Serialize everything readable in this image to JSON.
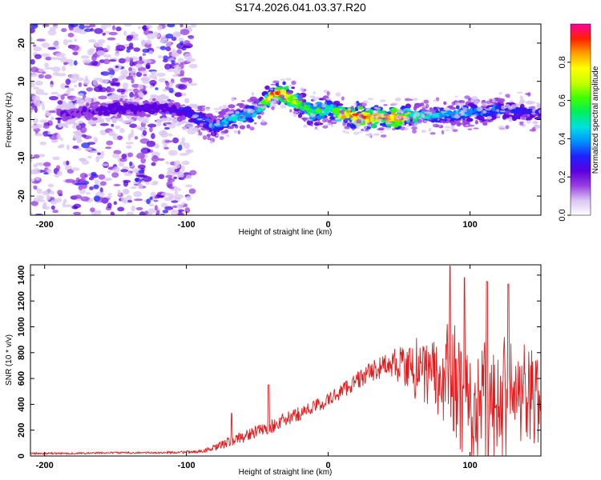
{
  "title": "S174.2026.041.03.37.R20",
  "chart_data": [
    {
      "type": "heatmap",
      "name": "spectrogram",
      "xlabel": "Height of straight line (km)",
      "ylabel": "Frequency (Hz)",
      "xlim": [
        -210,
        150
      ],
      "ylim": [
        -25,
        25
      ],
      "xticks": [
        -200,
        -100,
        0,
        100
      ],
      "yticks": [
        -20,
        -10,
        0,
        10,
        20
      ],
      "colorbar": {
        "label": "Normalized spectral amplitude",
        "range": [
          0,
          1
        ],
        "ticks": [
          0.0,
          0.2,
          0.4,
          0.6,
          0.8
        ],
        "colors": [
          "#ffffff",
          "#d9c6f2",
          "#9a3fe0",
          "#5b00e0",
          "#2020ff",
          "#0090ff",
          "#00e0e0",
          "#00ee60",
          "#40ff00",
          "#c8ff00",
          "#ffff00",
          "#ffa000",
          "#ff2000",
          "#ff00a0"
        ]
      },
      "ridge": {
        "x": [
          -190,
          -170,
          -150,
          -130,
          -115,
          -100,
          -90,
          -85,
          -80,
          -75,
          -70,
          -65,
          -60,
          -55,
          -50,
          -45,
          -40,
          -36,
          -32,
          -28,
          -24,
          -20,
          -16,
          -12,
          -8,
          -4,
          0,
          5,
          10,
          15,
          20,
          30,
          40,
          50,
          60,
          70,
          80,
          90,
          100,
          110,
          120,
          130,
          140,
          150
        ],
        "y": [
          1,
          2,
          3,
          3,
          3,
          2,
          0,
          -1,
          -2,
          -1,
          0,
          1,
          0.5,
          1.5,
          2.5,
          4,
          6.5,
          7,
          7,
          6,
          5,
          4,
          3,
          2,
          2,
          2,
          3,
          2,
          1.5,
          1,
          1,
          0.5,
          0.5,
          0.5,
          1,
          1,
          1.5,
          1.5,
          2,
          2,
          2.5,
          2.5,
          2,
          1.5
        ],
        "amplitude": [
          0.2,
          0.2,
          0.25,
          0.25,
          0.25,
          0.3,
          0.35,
          0.35,
          0.4,
          0.4,
          0.45,
          0.5,
          0.45,
          0.45,
          0.5,
          0.6,
          0.95,
          0.95,
          0.85,
          0.8,
          0.7,
          0.65,
          0.6,
          0.6,
          0.6,
          0.6,
          0.5,
          0.55,
          0.85,
          0.8,
          0.95,
          0.85,
          0.8,
          0.95,
          0.55,
          0.5,
          0.45,
          0.45,
          0.4,
          0.35,
          0.35,
          0.3,
          0.3,
          0.3
        ]
      },
      "noise_region": [
        -210,
        -95
      ]
    },
    {
      "type": "line",
      "name": "snr",
      "xlabel": "Height of straight line (km)",
      "ylabel": "SNR (10 * v/v)",
      "xlim": [
        -210,
        150
      ],
      "ylim": [
        0,
        1480
      ],
      "xticks": [
        -200,
        -100,
        0,
        100
      ],
      "yticks": [
        0,
        200,
        400,
        600,
        800,
        1000,
        1200,
        1400
      ],
      "color": "#e41a1c",
      "series": [
        {
          "name": "SNR",
          "x": [
            -210,
            -180,
            -150,
            -120,
            -100,
            -90,
            -80,
            -70,
            -60,
            -50,
            -40,
            -30,
            -20,
            -10,
            0,
            10,
            20,
            30,
            40,
            50,
            60,
            70,
            80,
            90,
            100,
            110,
            120,
            130,
            140,
            150
          ],
          "baseline": [
            20,
            20,
            25,
            25,
            30,
            35,
            60,
            110,
            150,
            190,
            230,
            280,
            330,
            380,
            430,
            510,
            580,
            650,
            700,
            720,
            720,
            700,
            650,
            580,
            560,
            540,
            520,
            500,
            500,
            500
          ],
          "spread": [
            10,
            10,
            10,
            10,
            15,
            15,
            40,
            60,
            70,
            70,
            80,
            80,
            80,
            80,
            80,
            90,
            100,
            110,
            130,
            160,
            220,
            280,
            400,
            450,
            450,
            450,
            430,
            400,
            380,
            350
          ],
          "peaks": [
            [
              -68,
              330
            ],
            [
              -42,
              550
            ],
            [
              86,
              1470
            ],
            [
              96,
              1380
            ],
            [
              112,
              1350
            ],
            [
              127,
              1330
            ]
          ]
        }
      ]
    }
  ]
}
